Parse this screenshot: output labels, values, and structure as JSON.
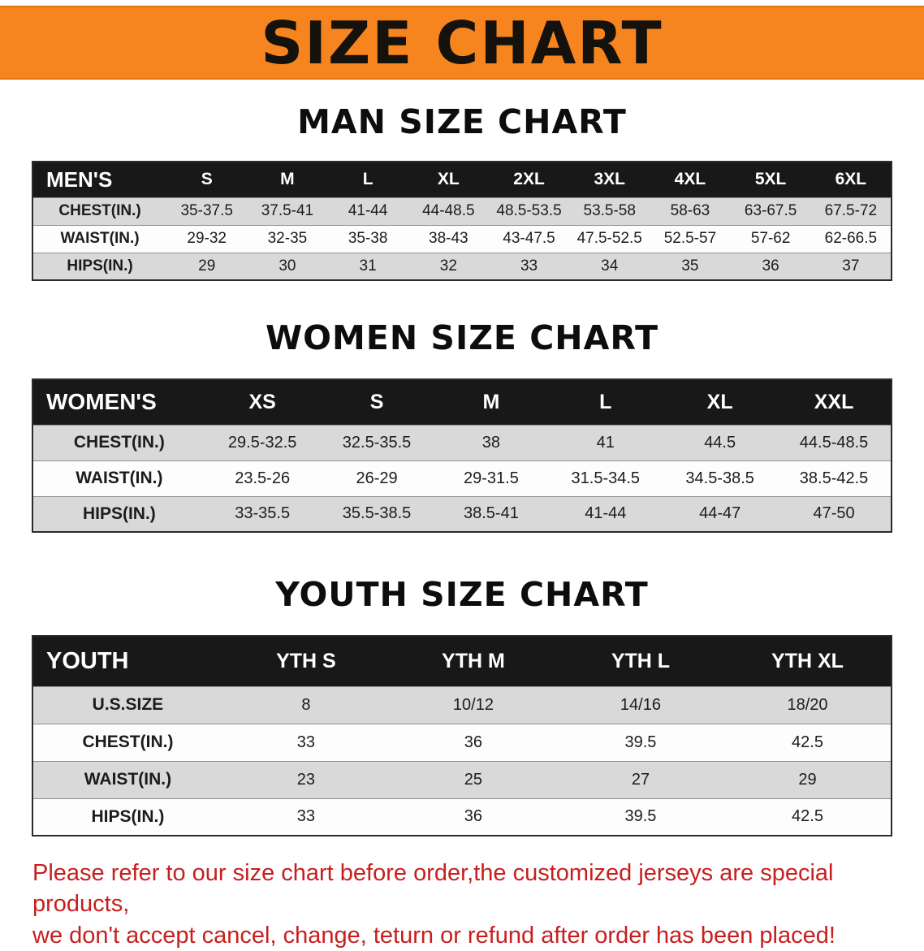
{
  "banner": {
    "title": "SIZE CHART"
  },
  "sections": [
    {
      "id": "men",
      "heading": "MAN SIZE CHART",
      "table": {
        "header": [
          "MEN'S",
          "S",
          "M",
          "L",
          "XL",
          "2XL",
          "3XL",
          "4XL",
          "5XL",
          "6XL"
        ],
        "rows": [
          [
            "CHEST(IN.)",
            "35-37.5",
            "37.5-41",
            "41-44",
            "44-48.5",
            "48.5-53.5",
            "53.5-58",
            "58-63",
            "63-67.5",
            "67.5-72"
          ],
          [
            "WAIST(IN.)",
            "29-32",
            "32-35",
            "35-38",
            "38-43",
            "43-47.5",
            "47.5-52.5",
            "52.5-57",
            "57-62",
            "62-66.5"
          ],
          [
            "HIPS(IN.)",
            "29",
            "30",
            "31",
            "32",
            "33",
            "34",
            "35",
            "36",
            "37"
          ]
        ]
      }
    },
    {
      "id": "women",
      "heading": "WOMEN SIZE CHART",
      "table": {
        "header": [
          "WOMEN'S",
          "XS",
          "S",
          "M",
          "L",
          "XL",
          "XXL"
        ],
        "rows": [
          [
            "CHEST(IN.)",
            "29.5-32.5",
            "32.5-35.5",
            "38",
            "41",
            "44.5",
            "44.5-48.5"
          ],
          [
            "WAIST(IN.)",
            "23.5-26",
            "26-29",
            "29-31.5",
            "31.5-34.5",
            "34.5-38.5",
            "38.5-42.5"
          ],
          [
            "HIPS(IN.)",
            "33-35.5",
            "35.5-38.5",
            "38.5-41",
            "41-44",
            "44-47",
            "47-50"
          ]
        ]
      }
    },
    {
      "id": "youth",
      "heading": "YOUTH SIZE CHART",
      "table": {
        "header": [
          "YOUTH",
          "YTH S",
          "YTH M",
          "YTH L",
          "YTH XL"
        ],
        "rows": [
          [
            "U.S.SIZE",
            "8",
            "10/12",
            "14/16",
            "18/20"
          ],
          [
            "CHEST(IN.)",
            "33",
            "36",
            "39.5",
            "42.5"
          ],
          [
            "WAIST(IN.)",
            "23",
            "25",
            "27",
            "29"
          ],
          [
            "HIPS(IN.)",
            "33",
            "36",
            "39.5",
            "42.5"
          ]
        ]
      }
    }
  ],
  "disclaimer": {
    "line1": "Please refer to our size chart before order,the customized jerseys are special products,",
    "line2": "we don't accept cancel, change, teturn or refund after order has been placed!"
  },
  "colors": {
    "banner_bg": "#f6851f",
    "header_row_bg": "#181818",
    "stripe_bg": "#d9d9d9",
    "disclaimer_text": "#c71f1f"
  }
}
